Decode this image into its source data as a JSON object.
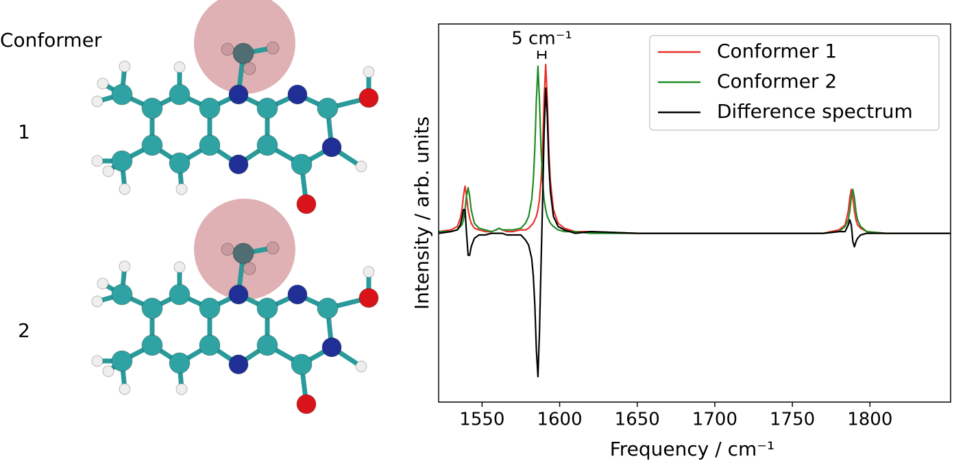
{
  "panel": {
    "heading": "Conformer",
    "labels": [
      "1",
      "2"
    ]
  },
  "chart_data": {
    "type": "line",
    "x_label": "Frequency / cm⁻¹",
    "y_label": "Intensity / arb. units",
    "annotation": {
      "text": "5 cm⁻¹",
      "x": [
        1586,
        1591
      ]
    },
    "xlim": [
      1522,
      1852
    ],
    "ylim": [
      -1.0,
      1.24
    ],
    "xticks": [
      1550,
      1600,
      1650,
      1700,
      1750,
      1800
    ],
    "legend": "upper right",
    "x": [
      1522,
      1530,
      1534,
      1536,
      1537,
      1538,
      1539,
      1540,
      1541,
      1542,
      1543,
      1545,
      1548,
      1552,
      1556,
      1559,
      1561,
      1563,
      1566,
      1570,
      1575,
      1578,
      1580,
      1582,
      1583,
      1584,
      1585,
      1586,
      1587,
      1588,
      1589,
      1590,
      1591,
      1592,
      1593,
      1594,
      1596,
      1599,
      1603,
      1610,
      1620,
      1650,
      1700,
      1750,
      1770,
      1780,
      1784,
      1786,
      1787,
      1788,
      1789,
      1790,
      1791,
      1792,
      1794,
      1798,
      1810,
      1852
    ],
    "series": [
      {
        "name": "Conformer 1",
        "color": "#e8302c",
        "values": [
          0.01,
          0.02,
          0.04,
          0.09,
          0.14,
          0.22,
          0.28,
          0.22,
          0.14,
          0.09,
          0.06,
          0.03,
          0.02,
          0.01,
          0.01,
          0.02,
          0.03,
          0.02,
          0.01,
          0.01,
          0.02,
          0.02,
          0.03,
          0.05,
          0.06,
          0.08,
          0.1,
          0.14,
          0.2,
          0.31,
          0.5,
          0.8,
          1.0,
          0.8,
          0.5,
          0.31,
          0.14,
          0.06,
          0.03,
          0.01,
          0.01,
          0,
          0,
          0,
          0,
          0.02,
          0.05,
          0.13,
          0.21,
          0.26,
          0.21,
          0.13,
          0.08,
          0.05,
          0.03,
          0.01,
          0,
          0
        ]
      },
      {
        "name": "Conformer 2",
        "color": "#1f8a22",
        "values": [
          0.01,
          0.01,
          0.02,
          0.04,
          0.05,
          0.08,
          0.14,
          0.22,
          0.27,
          0.22,
          0.14,
          0.06,
          0.03,
          0.02,
          0.01,
          0.02,
          0.03,
          0.02,
          0.02,
          0.02,
          0.03,
          0.06,
          0.1,
          0.2,
          0.31,
          0.5,
          0.79,
          0.99,
          0.79,
          0.5,
          0.31,
          0.2,
          0.14,
          0.1,
          0.08,
          0.06,
          0.04,
          0.02,
          0.01,
          0.01,
          0,
          0,
          0,
          0,
          0,
          0.01,
          0.04,
          0.08,
          0.13,
          0.21,
          0.26,
          0.21,
          0.13,
          0.08,
          0.04,
          0.01,
          0,
          0
        ]
      },
      {
        "name": "Difference spectrum",
        "color": "#000000",
        "values": [
          0,
          0.01,
          0.02,
          0.05,
          0.09,
          0.14,
          0.14,
          0,
          -0.13,
          -0.13,
          -0.08,
          -0.03,
          -0.01,
          -0.01,
          0,
          0,
          0,
          0,
          -0.01,
          -0.01,
          -0.01,
          -0.04,
          -0.07,
          -0.15,
          -0.25,
          -0.42,
          -0.69,
          -0.85,
          -0.59,
          -0.19,
          0.19,
          0.6,
          0.86,
          0.7,
          0.42,
          0.25,
          0.1,
          0.04,
          0.02,
          0,
          0.01,
          0,
          0,
          0,
          0,
          0.01,
          0.01,
          0.05,
          0.08,
          0.05,
          -0.05,
          -0.08,
          -0.05,
          -0.03,
          -0.01,
          0,
          0,
          0
        ]
      }
    ]
  }
}
